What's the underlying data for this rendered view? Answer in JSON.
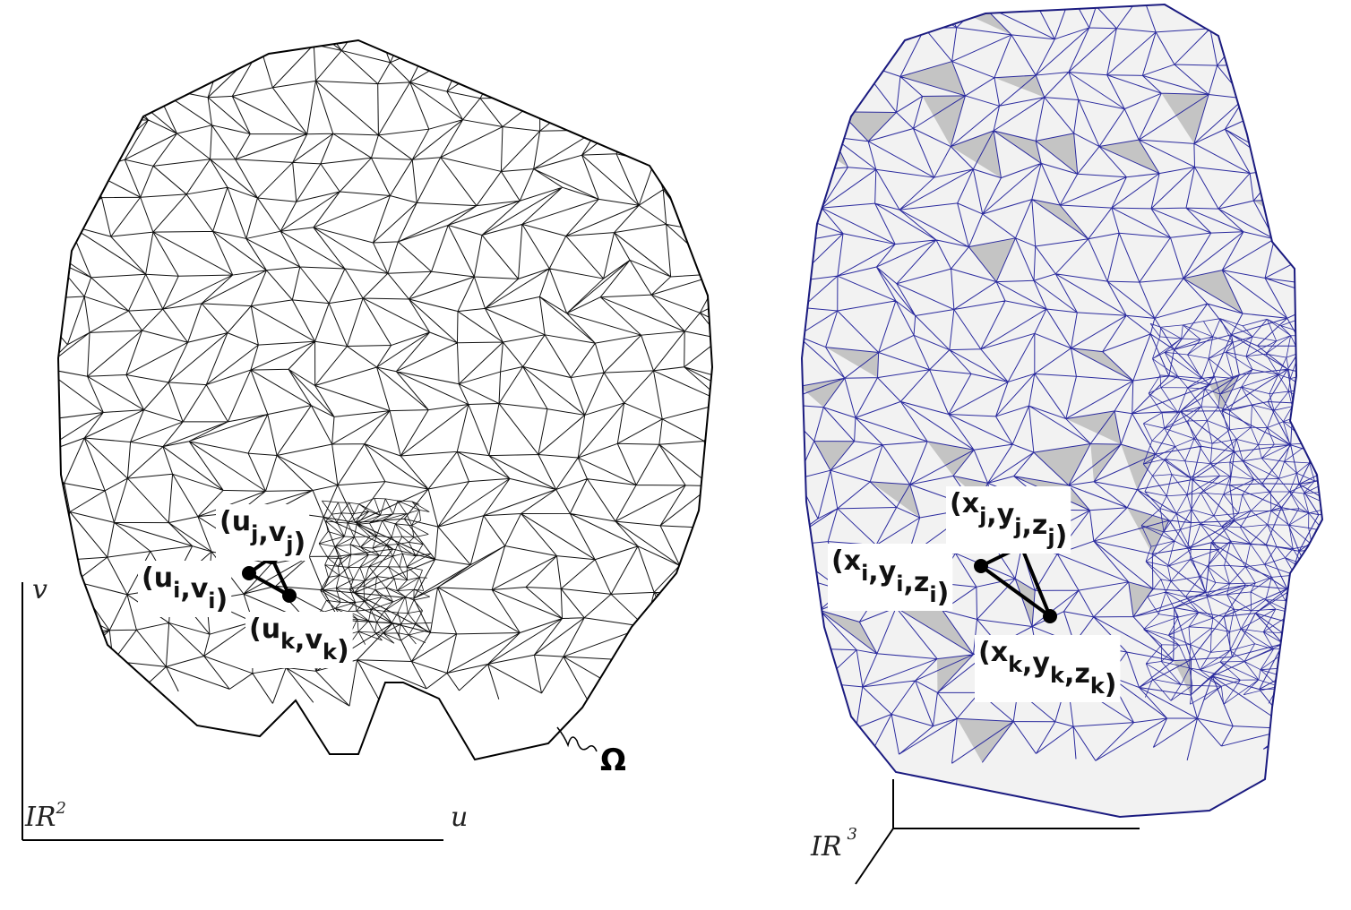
{
  "left_panel": {
    "space_label": "IR",
    "space_power": "2",
    "axis_u": "u",
    "axis_v": "v",
    "domain_symbol": "Ω",
    "mesh_color": "#111111",
    "vertex_labels": [
      [
        [
          "(u",
          "j"
        ],
        [
          ",v",
          "j"
        ],
        [
          ")",
          ""
        ]
      ],
      [
        [
          "(u",
          "i"
        ],
        [
          ",v",
          "i"
        ],
        [
          ")",
          ""
        ]
      ],
      [
        [
          "(u",
          "k"
        ],
        [
          ",v",
          "k"
        ],
        [
          ")",
          ""
        ]
      ]
    ]
  },
  "right_panel": {
    "space_label": "IR",
    "space_power": "3",
    "mesh_color": "#2b2b9e",
    "surface_color": "#f2f2f2",
    "shade_color": "#c4c4c4",
    "vertex_labels": [
      [
        [
          "(x",
          "j"
        ],
        [
          ",y",
          "j"
        ],
        [
          ",z",
          "j"
        ],
        [
          ")",
          ""
        ]
      ],
      [
        [
          "(x",
          "i"
        ],
        [
          ",y",
          "i"
        ],
        [
          ",z",
          "i"
        ],
        [
          ")",
          ""
        ]
      ],
      [
        [
          "(x",
          "k"
        ],
        [
          ",y",
          "k"
        ],
        [
          ",z",
          "k"
        ],
        [
          ")",
          ""
        ]
      ]
    ]
  }
}
